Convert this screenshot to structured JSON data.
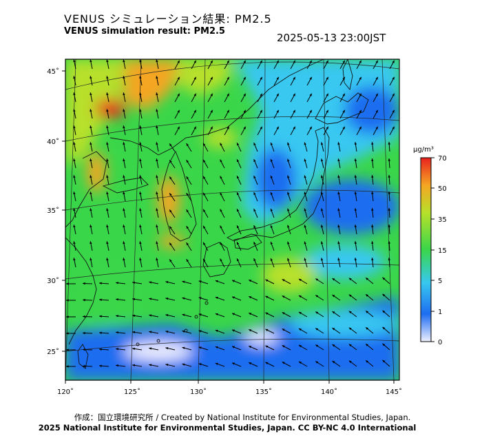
{
  "header": {
    "title_jp": "VENUS シミュレーション結果: PM2.5",
    "title_en": "VENUS simulation result: PM2.5",
    "timestamp": "2025-05-13 23:00JST"
  },
  "map": {
    "lon_ticks": [
      "120˚",
      "125˚",
      "130˚",
      "135˚",
      "140˚",
      "145˚"
    ],
    "lat_ticks": [
      "45˚",
      "40˚",
      "35˚",
      "30˚",
      "25˚"
    ],
    "colors": {
      "very_low": "#eef0ff",
      "low": "#1e6df0",
      "mid_low": "#37c8f0",
      "mid": "#3ad64a",
      "mid_high": "#b7e02a",
      "high": "#f5a623",
      "very_high": "#e8221f"
    }
  },
  "colorbar": {
    "unit": "μg/m³",
    "labels": [
      "70",
      "50",
      "35",
      "15",
      "5",
      "1",
      "0"
    ],
    "gradient": [
      "#e8221f",
      "#f5a623",
      "#b7e02a",
      "#3ad64a",
      "#37c8f0",
      "#1e6df0",
      "#eef0ff"
    ]
  },
  "footer": {
    "credit_jp_en": "作成：国立環境研究所 / Created by National Institute for Environmental Studies, Japan.",
    "license": "2025 National Institute for Environmental Studies, Japan. CC BY-NC 4.0 International"
  }
}
